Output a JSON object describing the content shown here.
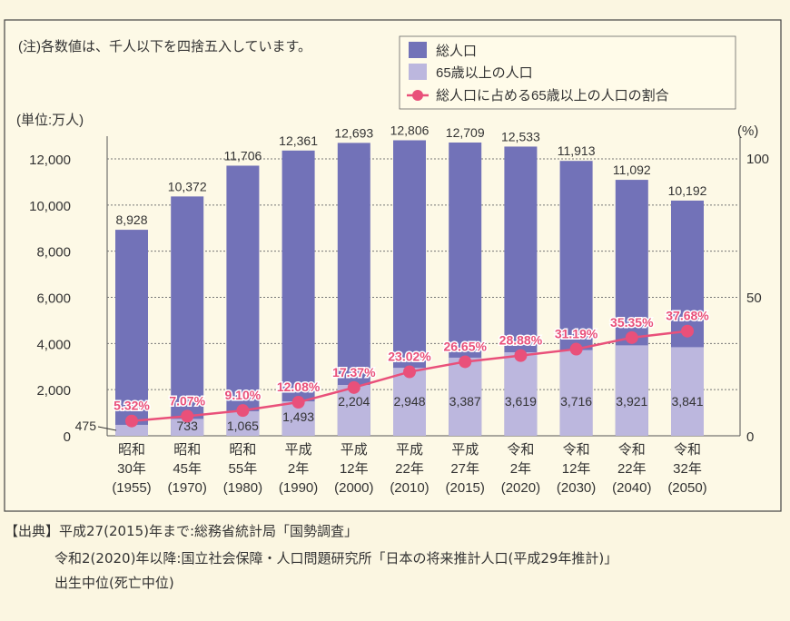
{
  "note": "(注)各数値は、千人以下を四捨五入しています。",
  "source": {
    "line1": "【出典】平成27(2015)年まで:総務省統計局「国勢調査」",
    "line2": "令和2(2020)年以降:国立社会保障・人口問題研究所「日本の将来推計人口(平成29年推計)」",
    "line3": "出生中位(死亡中位)"
  },
  "colors": {
    "total": "#7272b8",
    "elderly": "#bcb7de",
    "ratio": "#e9507a",
    "background": "#fbf6e1"
  },
  "chart_data": {
    "type": "bar",
    "stacked_overlay": true,
    "categories": [
      [
        "昭和",
        "30年",
        "(1955)"
      ],
      [
        "昭和",
        "45年",
        "(1970)"
      ],
      [
        "昭和",
        "55年",
        "(1980)"
      ],
      [
        "平成",
        "2年",
        "(1990)"
      ],
      [
        "平成",
        "12年",
        "(2000)"
      ],
      [
        "平成",
        "22年",
        "(2010)"
      ],
      [
        "平成",
        "27年",
        "(2015)"
      ],
      [
        "令和",
        "2年",
        "(2020)"
      ],
      [
        "令和",
        "12年",
        "(2030)"
      ],
      [
        "令和",
        "22年",
        "(2040)"
      ],
      [
        "令和",
        "32年",
        "(2050)"
      ]
    ],
    "series": [
      {
        "name": "総人口",
        "type": "bar",
        "axis": "left",
        "values": [
          8928,
          10372,
          11706,
          12361,
          12693,
          12806,
          12709,
          12533,
          11913,
          11092,
          10192
        ],
        "labels": [
          "8,928",
          "10,372",
          "11,706",
          "12,361",
          "12,693",
          "12,806",
          "12,709",
          "12,533",
          "11,913",
          "11,092",
          "10,192"
        ]
      },
      {
        "name": "65歳以上の人口",
        "type": "bar",
        "axis": "left",
        "values": [
          475,
          733,
          1065,
          1493,
          2204,
          2948,
          3387,
          3619,
          3716,
          3921,
          3841
        ],
        "labels": [
          "475",
          "733",
          "1,065",
          "1,493",
          "2,204",
          "2,948",
          "3,387",
          "3,619",
          "3,716",
          "3,921",
          "3,841"
        ]
      },
      {
        "name": "総人口に占める65歳以上の人口の割合",
        "type": "line",
        "axis": "right",
        "values": [
          5.32,
          7.07,
          9.1,
          12.08,
          17.37,
          23.02,
          26.65,
          28.88,
          31.19,
          35.35,
          37.68
        ],
        "labels": [
          "5.32%",
          "7.07%",
          "9.10%",
          "12.08%",
          "17.37%",
          "23.02%",
          "26.65%",
          "28.88%",
          "31.19%",
          "35.35%",
          "37.68%"
        ]
      }
    ],
    "left_axis": {
      "label": "(単位:万人)",
      "ylim": [
        0,
        12000
      ],
      "ticks": [
        "0",
        "2,000",
        "4,000",
        "6,000",
        "8,000",
        "10,000",
        "12,000"
      ]
    },
    "right_axis": {
      "label": "(%)",
      "ylim": [
        0,
        100
      ],
      "ticks": [
        "0",
        "50",
        "100"
      ]
    },
    "grid": true,
    "legend": "top-right"
  }
}
